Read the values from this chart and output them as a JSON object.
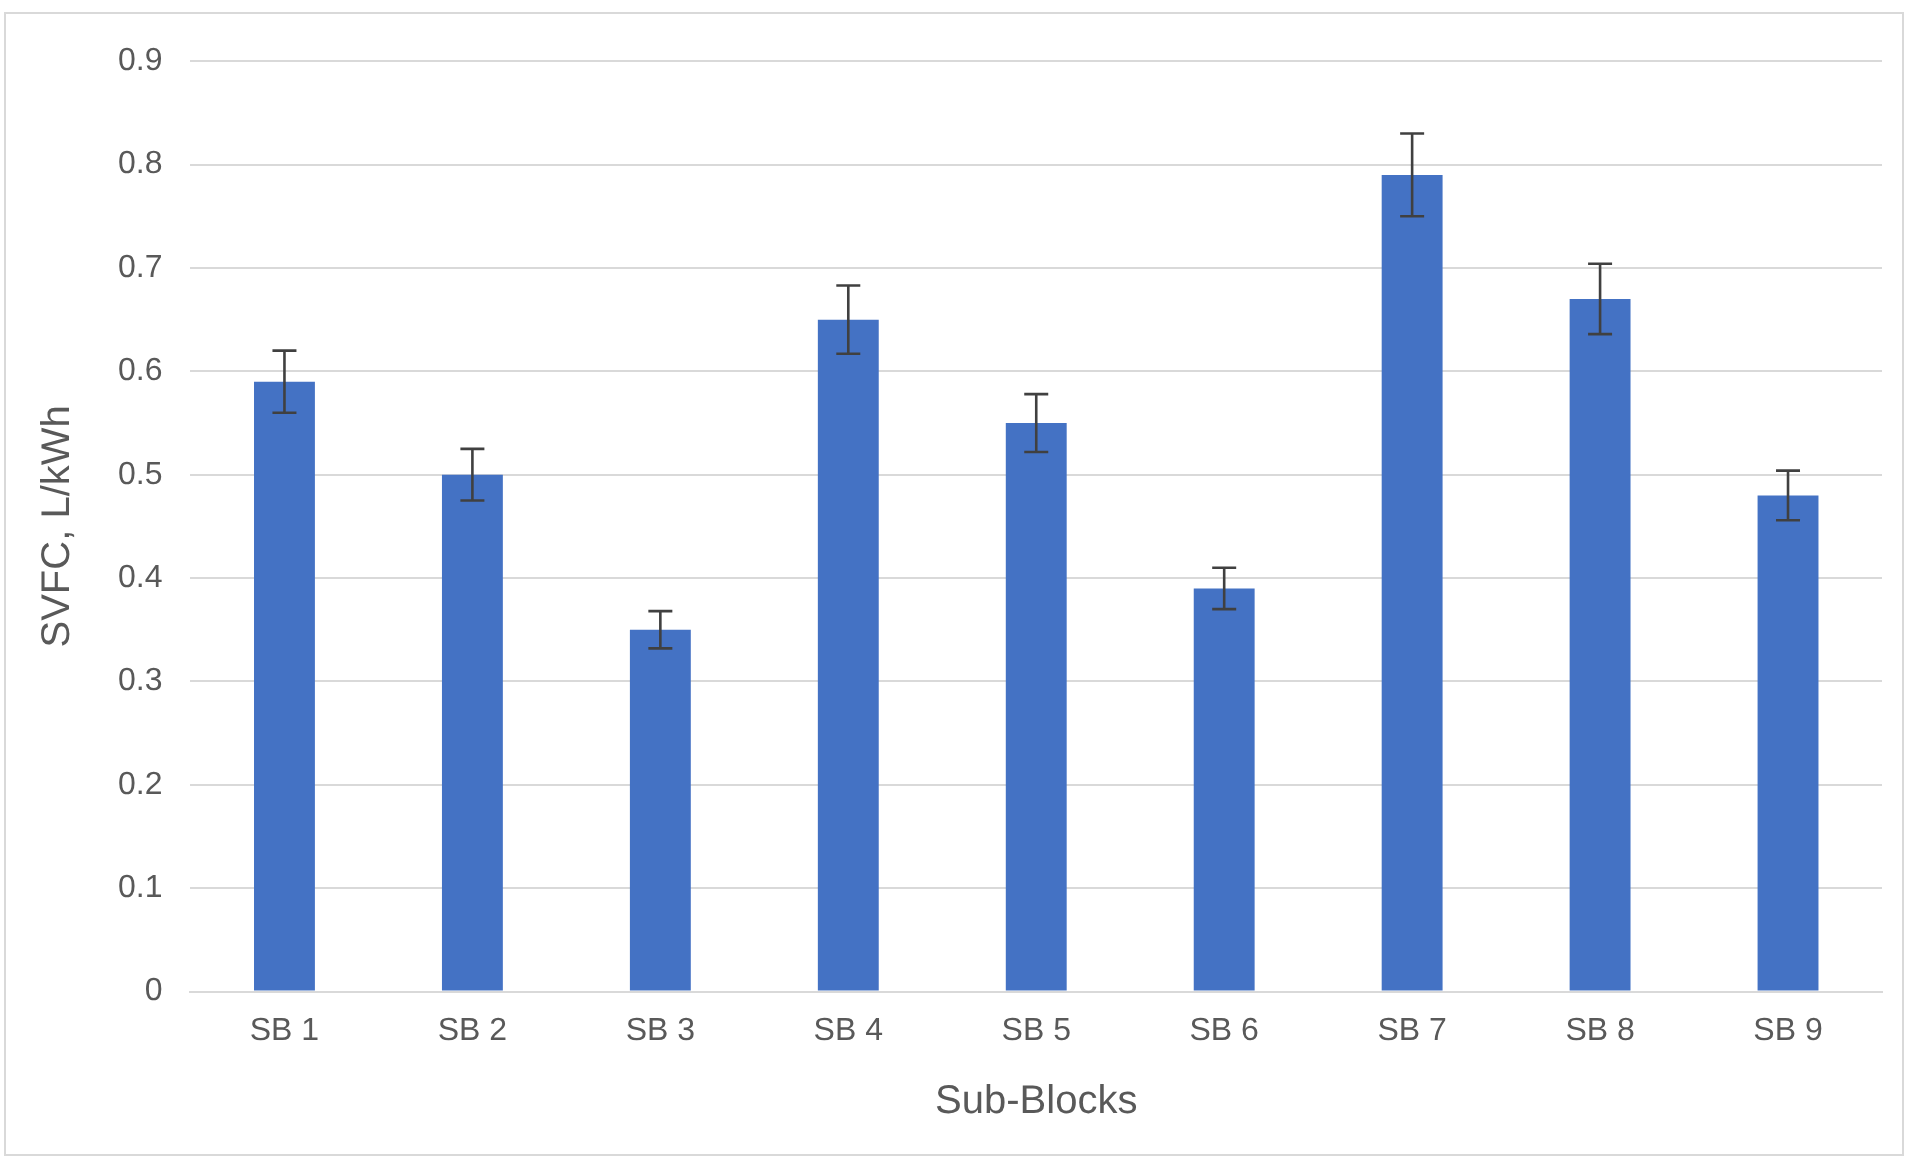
{
  "chart_data": {
    "type": "bar",
    "xlabel": "Sub-Blocks",
    "ylabel": "SVFC, L/kWh",
    "categories": [
      "SB 1",
      "SB 2",
      "SB 3",
      "SB 4",
      "SB 5",
      "SB 6",
      "SB 7",
      "SB 8",
      "SB 9"
    ],
    "values": [
      0.59,
      0.5,
      0.35,
      0.65,
      0.55,
      0.39,
      0.79,
      0.67,
      0.48
    ],
    "errors": [
      0.03,
      0.025,
      0.018,
      0.033,
      0.028,
      0.02,
      0.04,
      0.034,
      0.024
    ],
    "color": "#4472c4",
    "ylim": [
      0,
      0.9
    ],
    "yticks": [
      0,
      0.1,
      0.2,
      0.3,
      0.4,
      0.5,
      0.6,
      0.7,
      0.8,
      0.9
    ],
    "grid": "y",
    "legend": false
  }
}
